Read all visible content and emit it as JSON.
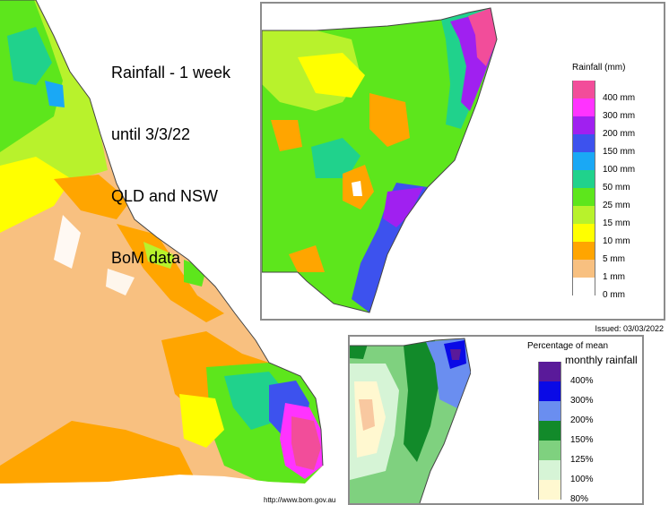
{
  "title": {
    "lines": [
      "Rainfall - 1 week",
      "until 3/3/22",
      "QLD and NSW",
      "BoM data"
    ]
  },
  "rainfall_legend": {
    "title": "Rainfall (mm)",
    "items": [
      {
        "label": "400 mm",
        "color": "#f24d9a"
      },
      {
        "label": "300 mm",
        "color": "#ff33ff"
      },
      {
        "label": "200 mm",
        "color": "#a020f0"
      },
      {
        "label": "150 mm",
        "color": "#3d52ee"
      },
      {
        "label": "100 mm",
        "color": "#1aa8f5"
      },
      {
        "label": "50 mm",
        "color": "#20d28c"
      },
      {
        "label": "25 mm",
        "color": "#5de61c"
      },
      {
        "label": "15 mm",
        "color": "#b8f22c"
      },
      {
        "label": "10 mm",
        "color": "#ffff00"
      },
      {
        "label": "5 mm",
        "color": "#ffa500"
      },
      {
        "label": "1 mm",
        "color": "#f8c080"
      },
      {
        "label": "0 mm",
        "color": "#ffffff"
      }
    ]
  },
  "issued": "Issued: 03/03/2022",
  "percent_legend": {
    "title": "Percentage of mean",
    "subtitle": "monthly rainfall",
    "items": [
      {
        "label": "400%",
        "color": "#5a1a9a"
      },
      {
        "label": "300%",
        "color": "#0a0ae6"
      },
      {
        "label": "200%",
        "color": "#6a8ef0"
      },
      {
        "label": "150%",
        "color": "#128a2a"
      },
      {
        "label": "125%",
        "color": "#7fd17f"
      },
      {
        "label": "100%",
        "color": "#d6f4d6"
      },
      {
        "label": "80%",
        "color": "#fff8d0"
      }
    ]
  },
  "credit": "http://www.bom.gov.au"
}
